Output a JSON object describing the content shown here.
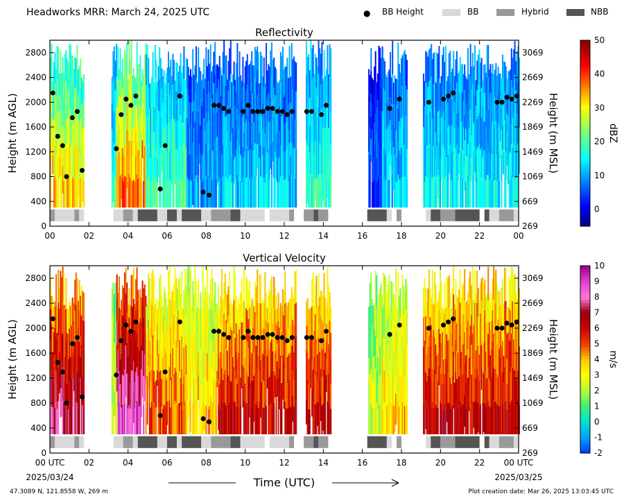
{
  "header": {
    "title": "Headworks MRR:  March 24, 2025 UTC",
    "legend": [
      {
        "label": "BB Height",
        "kind": "dot",
        "color": "#000000"
      },
      {
        "label": "BB",
        "kind": "patch",
        "color": "#d9d9d9"
      },
      {
        "label": "Hybrid",
        "kind": "patch",
        "color": "#999999"
      },
      {
        "label": "NBB",
        "kind": "patch",
        "color": "#555555"
      }
    ]
  },
  "xaxis": {
    "label": "Time (UTC)",
    "ticks": [
      {
        "h": 0,
        "label": "00"
      },
      {
        "h": 2,
        "label": "02"
      },
      {
        "h": 4,
        "label": "04"
      },
      {
        "h": 6,
        "label": "06"
      },
      {
        "h": 8,
        "label": "08"
      },
      {
        "h": 10,
        "label": "10"
      },
      {
        "h": 12,
        "label": "12"
      },
      {
        "h": 14,
        "label": "14"
      },
      {
        "h": 16,
        "label": "16"
      },
      {
        "h": 18,
        "label": "18"
      },
      {
        "h": 20,
        "label": "20"
      },
      {
        "h": 22,
        "label": "22"
      },
      {
        "h": 24,
        "label": "00"
      }
    ],
    "bottom_first": "00 UTC",
    "bottom_last": "00 UTC",
    "start_date": "2025/03/24",
    "end_date": "2025/03/25"
  },
  "footer": {
    "location": "47.3089 N, 121.8558 W, 269 m",
    "created": "Plot creation date: Mar 26, 2025 13:03:45 UTC"
  },
  "chart_data": [
    {
      "type": "heatmap",
      "title": "Reflectivity",
      "ylabel": "Height (m AGL)",
      "y2label": "Height (m MSL)",
      "xlim": [
        0,
        24
      ],
      "ylim": [
        0,
        3000
      ],
      "yticks": [
        0,
        400,
        800,
        1200,
        1600,
        2000,
        2400,
        2800
      ],
      "y2ticks": [
        "269",
        "669",
        "1069",
        "1469",
        "1869",
        "2269",
        "2669",
        "3069"
      ],
      "colorbar": {
        "label": "dBZ",
        "min": -5,
        "max": 50,
        "ticks": [
          0,
          10,
          20,
          30,
          40,
          50
        ]
      },
      "colormap": "jet",
      "data_intervals": [
        {
          "start": 0.0,
          "end": 1.75,
          "level": 26
        },
        {
          "start": 3.15,
          "end": 3.4,
          "level": 14
        },
        {
          "start": 3.4,
          "end": 4.9,
          "level": 30
        },
        {
          "start": 4.9,
          "end": 7.0,
          "level": 16
        },
        {
          "start": 7.0,
          "end": 8.6,
          "level": 8
        },
        {
          "start": 8.6,
          "end": 12.6,
          "level": 10
        },
        {
          "start": 13.1,
          "end": 14.4,
          "level": 14
        },
        {
          "start": 16.3,
          "end": 17.0,
          "level": 4
        },
        {
          "start": 17.0,
          "end": 18.3,
          "level": 10
        },
        {
          "start": 19.1,
          "end": 21.5,
          "level": 12
        },
        {
          "start": 21.5,
          "end": 24.0,
          "level": 12
        }
      ],
      "bb_height": [
        {
          "t": 0.15,
          "h": 2150
        },
        {
          "t": 0.4,
          "h": 1450
        },
        {
          "t": 0.65,
          "h": 1300
        },
        {
          "t": 0.85,
          "h": 800
        },
        {
          "t": 1.15,
          "h": 1750
        },
        {
          "t": 1.4,
          "h": 1850
        },
        {
          "t": 1.65,
          "h": 900
        },
        {
          "t": 3.4,
          "h": 1250
        },
        {
          "t": 3.65,
          "h": 1800
        },
        {
          "t": 3.9,
          "h": 2050
        },
        {
          "t": 4.15,
          "h": 1950
        },
        {
          "t": 4.4,
          "h": 2100
        },
        {
          "t": 5.65,
          "h": 600
        },
        {
          "t": 5.9,
          "h": 1300
        },
        {
          "t": 6.65,
          "h": 2100
        },
        {
          "t": 7.85,
          "h": 550
        },
        {
          "t": 8.15,
          "h": 500
        },
        {
          "t": 8.4,
          "h": 1950
        },
        {
          "t": 8.65,
          "h": 1950
        },
        {
          "t": 8.9,
          "h": 1900
        },
        {
          "t": 9.15,
          "h": 1850
        },
        {
          "t": 9.9,
          "h": 1850
        },
        {
          "t": 10.15,
          "h": 1950
        },
        {
          "t": 10.4,
          "h": 1850
        },
        {
          "t": 10.65,
          "h": 1850
        },
        {
          "t": 10.9,
          "h": 1850
        },
        {
          "t": 11.15,
          "h": 1900
        },
        {
          "t": 11.4,
          "h": 1900
        },
        {
          "t": 11.65,
          "h": 1850
        },
        {
          "t": 11.9,
          "h": 1850
        },
        {
          "t": 12.15,
          "h": 1800
        },
        {
          "t": 12.4,
          "h": 1850
        },
        {
          "t": 13.15,
          "h": 1850
        },
        {
          "t": 13.4,
          "h": 1850
        },
        {
          "t": 13.9,
          "h": 1800
        },
        {
          "t": 14.15,
          "h": 1950
        },
        {
          "t": 17.4,
          "h": 1900
        },
        {
          "t": 17.9,
          "h": 2050
        },
        {
          "t": 19.4,
          "h": 2000
        },
        {
          "t": 20.15,
          "h": 2050
        },
        {
          "t": 20.4,
          "h": 2100
        },
        {
          "t": 20.65,
          "h": 2150
        },
        {
          "t": 22.9,
          "h": 2000
        },
        {
          "t": 23.15,
          "h": 2000
        },
        {
          "t": 23.4,
          "h": 2080
        },
        {
          "t": 23.65,
          "h": 2050
        },
        {
          "t": 23.9,
          "h": 2100
        }
      ],
      "bb_type_bar": [
        {
          "start": 0.0,
          "end": 0.25,
          "type": "Hybrid"
        },
        {
          "start": 0.25,
          "end": 1.25,
          "type": "BB"
        },
        {
          "start": 1.25,
          "end": 1.5,
          "type": "Hybrid"
        },
        {
          "start": 1.5,
          "end": 1.75,
          "type": "BB"
        },
        {
          "start": 3.25,
          "end": 3.75,
          "type": "BB"
        },
        {
          "start": 3.75,
          "end": 4.25,
          "type": "Hybrid"
        },
        {
          "start": 4.25,
          "end": 4.5,
          "type": "BB"
        },
        {
          "start": 4.5,
          "end": 5.5,
          "type": "NBB"
        },
        {
          "start": 5.5,
          "end": 6.0,
          "type": "BB"
        },
        {
          "start": 6.0,
          "end": 6.5,
          "type": "NBB"
        },
        {
          "start": 6.5,
          "end": 6.75,
          "type": "BB"
        },
        {
          "start": 6.75,
          "end": 7.75,
          "type": "NBB"
        },
        {
          "start": 7.75,
          "end": 8.25,
          "type": "BB"
        },
        {
          "start": 8.25,
          "end": 9.25,
          "type": "Hybrid"
        },
        {
          "start": 9.25,
          "end": 9.75,
          "type": "NBB"
        },
        {
          "start": 9.75,
          "end": 11.0,
          "type": "BB"
        },
        {
          "start": 11.25,
          "end": 12.25,
          "type": "BB"
        },
        {
          "start": 12.25,
          "end": 12.5,
          "type": "Hybrid"
        },
        {
          "start": 13.0,
          "end": 13.5,
          "type": "Hybrid"
        },
        {
          "start": 13.5,
          "end": 13.75,
          "type": "NBB"
        },
        {
          "start": 13.75,
          "end": 14.25,
          "type": "Hybrid"
        },
        {
          "start": 16.25,
          "end": 17.25,
          "type": "NBB"
        },
        {
          "start": 17.25,
          "end": 17.5,
          "type": "BB"
        },
        {
          "start": 17.75,
          "end": 18.0,
          "type": "Hybrid"
        },
        {
          "start": 19.25,
          "end": 19.5,
          "type": "BB"
        },
        {
          "start": 19.5,
          "end": 20.0,
          "type": "NBB"
        },
        {
          "start": 20.0,
          "end": 20.75,
          "type": "Hybrid"
        },
        {
          "start": 20.75,
          "end": 22.0,
          "type": "NBB"
        },
        {
          "start": 22.25,
          "end": 22.5,
          "type": "NBB"
        },
        {
          "start": 22.5,
          "end": 23.0,
          "type": "BB"
        },
        {
          "start": 23.0,
          "end": 23.75,
          "type": "Hybrid"
        },
        {
          "start": 23.75,
          "end": 24.0,
          "type": "BB"
        }
      ]
    },
    {
      "type": "heatmap",
      "title": "Vertical Velocity",
      "ylabel": "Height (m AGL)",
      "y2label": "Height (m MSL)",
      "xlim": [
        0,
        24
      ],
      "ylim": [
        0,
        3000
      ],
      "yticks": [
        0,
        400,
        800,
        1200,
        1600,
        2000,
        2400,
        2800
      ],
      "y2ticks": [
        "269",
        "669",
        "1069",
        "1469",
        "1869",
        "2269",
        "2669",
        "3069"
      ],
      "colorbar": {
        "label": "m/s",
        "min": -2,
        "max": 10,
        "ticks": [
          -2,
          -1,
          0,
          1,
          2,
          3,
          4,
          5,
          6,
          7,
          8,
          9,
          10
        ]
      },
      "colormap": "velocity",
      "data_intervals": [
        {
          "start": 0.0,
          "end": 1.75,
          "level": 6
        },
        {
          "start": 3.15,
          "end": 3.4,
          "level": 2
        },
        {
          "start": 3.4,
          "end": 4.9,
          "level": 7
        },
        {
          "start": 4.9,
          "end": 7.0,
          "level": 4
        },
        {
          "start": 7.0,
          "end": 8.6,
          "level": 3
        },
        {
          "start": 8.6,
          "end": 12.6,
          "level": 5
        },
        {
          "start": 13.1,
          "end": 14.4,
          "level": 5
        },
        {
          "start": 16.3,
          "end": 17.0,
          "level": 2
        },
        {
          "start": 17.0,
          "end": 18.3,
          "level": 3
        },
        {
          "start": 19.1,
          "end": 21.5,
          "level": 5
        },
        {
          "start": 21.5,
          "end": 24.0,
          "level": 5
        }
      ],
      "bb_height": [
        {
          "t": 0.15,
          "h": 2150
        },
        {
          "t": 0.4,
          "h": 1450
        },
        {
          "t": 0.65,
          "h": 1300
        },
        {
          "t": 0.85,
          "h": 800
        },
        {
          "t": 1.15,
          "h": 1750
        },
        {
          "t": 1.4,
          "h": 1850
        },
        {
          "t": 1.65,
          "h": 900
        },
        {
          "t": 3.4,
          "h": 1250
        },
        {
          "t": 3.65,
          "h": 1800
        },
        {
          "t": 3.9,
          "h": 2050
        },
        {
          "t": 4.15,
          "h": 1950
        },
        {
          "t": 4.4,
          "h": 2100
        },
        {
          "t": 5.65,
          "h": 600
        },
        {
          "t": 5.9,
          "h": 1300
        },
        {
          "t": 6.65,
          "h": 2100
        },
        {
          "t": 7.85,
          "h": 550
        },
        {
          "t": 8.15,
          "h": 500
        },
        {
          "t": 8.4,
          "h": 1950
        },
        {
          "t": 8.65,
          "h": 1950
        },
        {
          "t": 8.9,
          "h": 1900
        },
        {
          "t": 9.15,
          "h": 1850
        },
        {
          "t": 9.9,
          "h": 1850
        },
        {
          "t": 10.15,
          "h": 1950
        },
        {
          "t": 10.4,
          "h": 1850
        },
        {
          "t": 10.65,
          "h": 1850
        },
        {
          "t": 10.9,
          "h": 1850
        },
        {
          "t": 11.15,
          "h": 1900
        },
        {
          "t": 11.4,
          "h": 1900
        },
        {
          "t": 11.65,
          "h": 1850
        },
        {
          "t": 11.9,
          "h": 1850
        },
        {
          "t": 12.15,
          "h": 1800
        },
        {
          "t": 12.4,
          "h": 1850
        },
        {
          "t": 13.15,
          "h": 1850
        },
        {
          "t": 13.4,
          "h": 1850
        },
        {
          "t": 13.9,
          "h": 1800
        },
        {
          "t": 14.15,
          "h": 1950
        },
        {
          "t": 17.4,
          "h": 1900
        },
        {
          "t": 17.9,
          "h": 2050
        },
        {
          "t": 19.4,
          "h": 2000
        },
        {
          "t": 20.15,
          "h": 2050
        },
        {
          "t": 20.4,
          "h": 2100
        },
        {
          "t": 20.65,
          "h": 2150
        },
        {
          "t": 22.9,
          "h": 2000
        },
        {
          "t": 23.15,
          "h": 2000
        },
        {
          "t": 23.4,
          "h": 2080
        },
        {
          "t": 23.65,
          "h": 2050
        },
        {
          "t": 23.9,
          "h": 2100
        }
      ],
      "bb_type_bar": [
        {
          "start": 0.0,
          "end": 0.25,
          "type": "Hybrid"
        },
        {
          "start": 0.25,
          "end": 1.25,
          "type": "BB"
        },
        {
          "start": 1.25,
          "end": 1.5,
          "type": "Hybrid"
        },
        {
          "start": 1.5,
          "end": 1.75,
          "type": "BB"
        },
        {
          "start": 3.25,
          "end": 3.75,
          "type": "BB"
        },
        {
          "start": 3.75,
          "end": 4.25,
          "type": "Hybrid"
        },
        {
          "start": 4.25,
          "end": 4.5,
          "type": "BB"
        },
        {
          "start": 4.5,
          "end": 5.5,
          "type": "NBB"
        },
        {
          "start": 5.5,
          "end": 6.0,
          "type": "BB"
        },
        {
          "start": 6.0,
          "end": 6.5,
          "type": "NBB"
        },
        {
          "start": 6.5,
          "end": 6.75,
          "type": "BB"
        },
        {
          "start": 6.75,
          "end": 7.75,
          "type": "NBB"
        },
        {
          "start": 7.75,
          "end": 8.25,
          "type": "BB"
        },
        {
          "start": 8.25,
          "end": 9.25,
          "type": "Hybrid"
        },
        {
          "start": 9.25,
          "end": 9.75,
          "type": "NBB"
        },
        {
          "start": 9.75,
          "end": 11.0,
          "type": "BB"
        },
        {
          "start": 11.25,
          "end": 12.25,
          "type": "BB"
        },
        {
          "start": 12.25,
          "end": 12.5,
          "type": "Hybrid"
        },
        {
          "start": 13.0,
          "end": 13.5,
          "type": "Hybrid"
        },
        {
          "start": 13.5,
          "end": 13.75,
          "type": "NBB"
        },
        {
          "start": 13.75,
          "end": 14.25,
          "type": "Hybrid"
        },
        {
          "start": 16.25,
          "end": 17.25,
          "type": "NBB"
        },
        {
          "start": 17.25,
          "end": 17.5,
          "type": "BB"
        },
        {
          "start": 17.75,
          "end": 18.0,
          "type": "Hybrid"
        },
        {
          "start": 19.25,
          "end": 19.5,
          "type": "BB"
        },
        {
          "start": 19.5,
          "end": 20.0,
          "type": "NBB"
        },
        {
          "start": 20.0,
          "end": 20.75,
          "type": "Hybrid"
        },
        {
          "start": 20.75,
          "end": 22.0,
          "type": "NBB"
        },
        {
          "start": 22.25,
          "end": 22.5,
          "type": "NBB"
        },
        {
          "start": 22.5,
          "end": 23.0,
          "type": "BB"
        },
        {
          "start": 23.0,
          "end": 23.75,
          "type": "Hybrid"
        },
        {
          "start": 23.75,
          "end": 24.0,
          "type": "BB"
        }
      ]
    }
  ]
}
